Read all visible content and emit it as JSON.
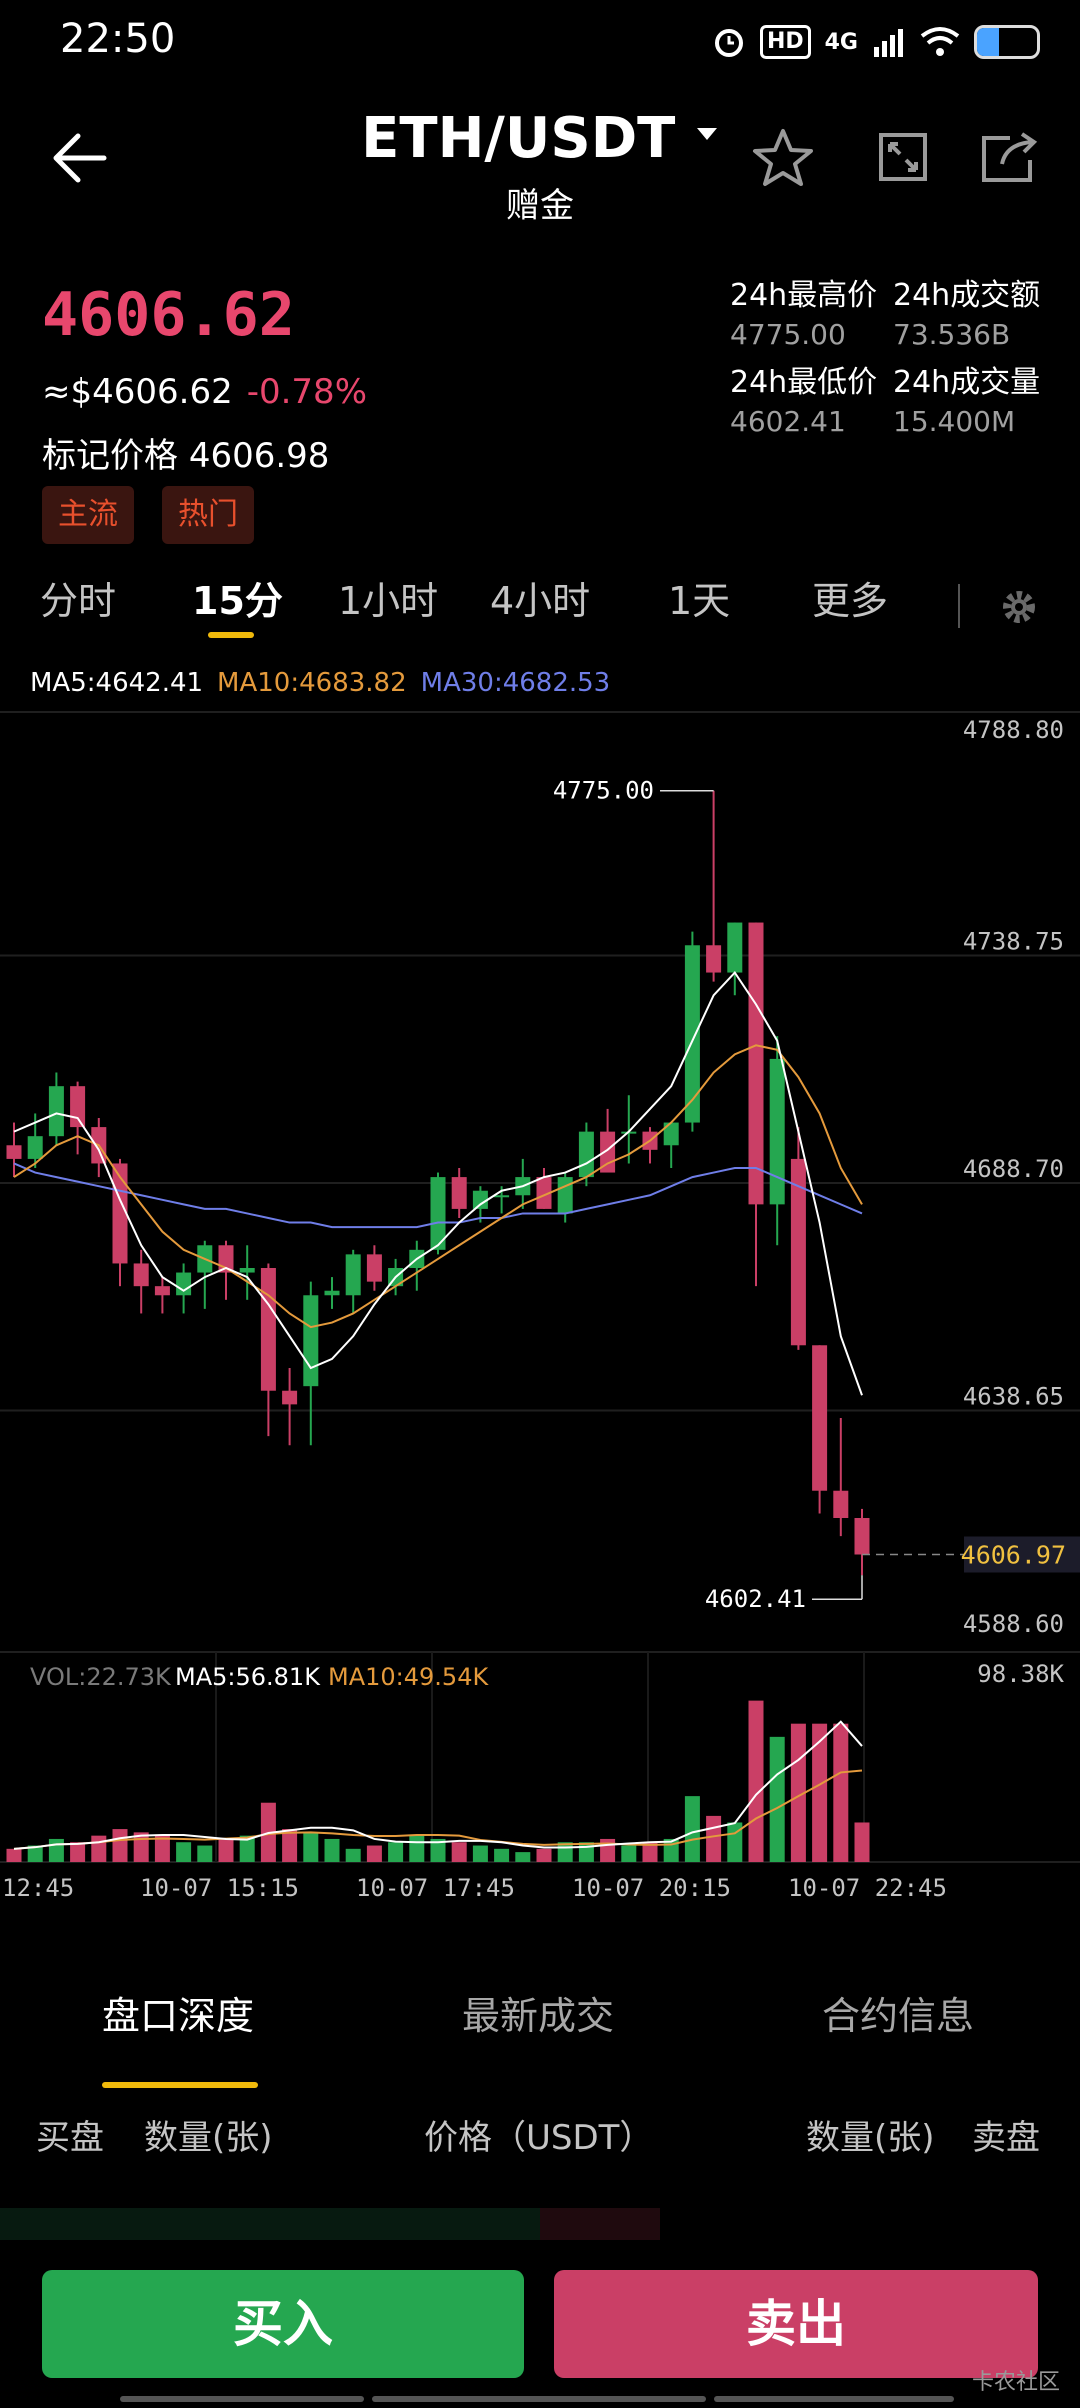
{
  "status_bar": {
    "time": "22:50",
    "hd": "HD",
    "network": "4G"
  },
  "header": {
    "title": "ETH/USDT",
    "subtitle": "赠金"
  },
  "price": {
    "last": "4606.62",
    "usd": "≈$4606.62",
    "change": "-0.78%",
    "mark_label": "标记价格",
    "mark_value": "4606.98"
  },
  "tags": [
    "主流",
    "热门"
  ],
  "stats": {
    "high_label": "24h最高价",
    "high": "4775.00",
    "low_label": "24h最低价",
    "low": "4602.41",
    "turnover_label": "24h成交额",
    "turnover": "73.536B",
    "volume_label": "24h成交量",
    "volume": "15.400M"
  },
  "interval_tabs": [
    "分时",
    "15分",
    "1小时",
    "4小时",
    "1天",
    "更多"
  ],
  "active_interval": "15分",
  "ma_legend": {
    "ma5": "MA5:4642.41",
    "ma10": "MA10:4683.82",
    "ma30": "MA30:4682.53"
  },
  "vol_legend": {
    "vol": "VOL:22.73K",
    "ma5": "MA5:56.81K",
    "ma10": "MA10:49.54K"
  },
  "price_axis": [
    "4788.80",
    "4738.75",
    "4688.70",
    "4638.65",
    "4588.60"
  ],
  "current_price_tag": "4606.97",
  "high_marker": "4775.00",
  "low_marker": "4602.41",
  "volume_axis_max": "98.38K",
  "time_axis": [
    "12:45",
    "10-07 15:15",
    "10-07 17:45",
    "10-07 20:15",
    "10-07 22:45"
  ],
  "colors": {
    "up": "#25a750",
    "down": "#ca3f66",
    "accent": "#f0b90b",
    "ma5": "#ffffff",
    "ma10": "#e49a3c",
    "ma30": "#6f7ee8"
  },
  "chart_data": {
    "type": "candlestick",
    "ylim": [
      4588.6,
      4788.8
    ],
    "candles": [
      {
        "o": 4697,
        "h": 4702,
        "l": 4690,
        "c": 4694
      },
      {
        "o": 4694,
        "h": 4704,
        "l": 4692,
        "c": 4699
      },
      {
        "o": 4699,
        "h": 4713,
        "l": 4697,
        "c": 4710
      },
      {
        "o": 4710,
        "h": 4711,
        "l": 4695,
        "c": 4701
      },
      {
        "o": 4701,
        "h": 4703,
        "l": 4690,
        "c": 4693
      },
      {
        "o": 4693,
        "h": 4694,
        "l": 4666,
        "c": 4671
      },
      {
        "o": 4671,
        "h": 4674,
        "l": 4660,
        "c": 4666
      },
      {
        "o": 4666,
        "h": 4668,
        "l": 4660,
        "c": 4664
      },
      {
        "o": 4664,
        "h": 4671,
        "l": 4660,
        "c": 4669
      },
      {
        "o": 4669,
        "h": 4676,
        "l": 4661,
        "c": 4675
      },
      {
        "o": 4675,
        "h": 4676,
        "l": 4663,
        "c": 4669
      },
      {
        "o": 4669,
        "h": 4675,
        "l": 4663,
        "c": 4670
      },
      {
        "o": 4670,
        "h": 4671,
        "l": 4633,
        "c": 4643
      },
      {
        "o": 4643,
        "h": 4648,
        "l": 4631,
        "c": 4640
      },
      {
        "o": 4644,
        "h": 4667,
        "l": 4631,
        "c": 4664
      },
      {
        "o": 4664,
        "h": 4668,
        "l": 4661,
        "c": 4665
      },
      {
        "o": 4664,
        "h": 4674,
        "l": 4660,
        "c": 4673
      },
      {
        "o": 4673,
        "h": 4675,
        "l": 4665,
        "c": 4667
      },
      {
        "o": 4666,
        "h": 4672,
        "l": 4664,
        "c": 4670
      },
      {
        "o": 4670,
        "h": 4676,
        "l": 4665,
        "c": 4674
      },
      {
        "o": 4674,
        "h": 4691,
        "l": 4673,
        "c": 4690
      },
      {
        "o": 4690,
        "h": 4692,
        "l": 4681,
        "c": 4683
      },
      {
        "o": 4683,
        "h": 4688,
        "l": 4680,
        "c": 4687
      },
      {
        "o": 4686,
        "h": 4688,
        "l": 4682,
        "c": 4686
      },
      {
        "o": 4686,
        "h": 4694,
        "l": 4683,
        "c": 4690
      },
      {
        "o": 4690,
        "h": 4692,
        "l": 4683,
        "c": 4683
      },
      {
        "o": 4682,
        "h": 4691,
        "l": 4680,
        "c": 4690
      },
      {
        "o": 4690,
        "h": 4702,
        "l": 4688,
        "c": 4700
      },
      {
        "o": 4700,
        "h": 4705,
        "l": 4692,
        "c": 4691
      },
      {
        "o": 4700,
        "h": 4708,
        "l": 4693,
        "c": 4700
      },
      {
        "o": 4700,
        "h": 4701,
        "l": 4693,
        "c": 4696
      },
      {
        "o": 4697,
        "h": 4702,
        "l": 4692,
        "c": 4702
      },
      {
        "o": 4702,
        "h": 4744,
        "l": 4700,
        "c": 4741
      },
      {
        "o": 4741,
        "h": 4775,
        "l": 4733,
        "c": 4735
      },
      {
        "o": 4735,
        "h": 4746,
        "l": 4730,
        "c": 4746
      },
      {
        "o": 4746,
        "h": 4746,
        "l": 4666,
        "c": 4684
      },
      {
        "o": 4684,
        "h": 4721,
        "l": 4675,
        "c": 4716
      },
      {
        "o": 4694,
        "h": 4701,
        "l": 4652,
        "c": 4653
      },
      {
        "o": 4653,
        "h": 4653,
        "l": 4616,
        "c": 4621
      },
      {
        "o": 4621,
        "h": 4637,
        "l": 4611,
        "c": 4615
      },
      {
        "o": 4615,
        "h": 4617,
        "l": 4602.41,
        "c": 4606.97
      }
    ],
    "volume_max": 98.38,
    "volumes": [
      8,
      10,
      14,
      12,
      16,
      20,
      18,
      16,
      12,
      10,
      14,
      16,
      36,
      20,
      18,
      14,
      8,
      10,
      12,
      16,
      14,
      12,
      10,
      8,
      6,
      8,
      12,
      12,
      14,
      10,
      12,
      14,
      40,
      28,
      24,
      98,
      76,
      84,
      84,
      84,
      24
    ],
    "ma5": [
      4700,
      4702,
      4704,
      4703,
      4696,
      4685,
      4675,
      4668,
      4665,
      4668,
      4670,
      4668,
      4662,
      4655,
      4648,
      4650,
      4655,
      4662,
      4668,
      4672,
      4675,
      4680,
      4684,
      4687,
      4688,
      4690,
      4691,
      4693,
      4696,
      4700,
      4705,
      4710,
      4720,
      4730,
      4735,
      4728,
      4720,
      4700,
      4680,
      4655,
      4642
    ],
    "ma10": [
      4690,
      4693,
      4697,
      4699,
      4697,
      4690,
      4684,
      4678,
      4674,
      4672,
      4670,
      4667,
      4664,
      4660,
      4657,
      4658,
      4660,
      4663,
      4666,
      4669,
      4672,
      4675,
      4678,
      4681,
      4684,
      4686,
      4688,
      4690,
      4693,
      4695,
      4698,
      4702,
      4707,
      4713,
      4717,
      4719,
      4718,
      4712,
      4704,
      4692,
      4684
    ],
    "ma30": [
      4693,
      4691,
      4690,
      4689,
      4688,
      4687,
      4686,
      4685,
      4684,
      4683,
      4683,
      4682,
      4681,
      4680,
      4680,
      4679,
      4679,
      4679,
      4679,
      4679,
      4680,
      4680,
      4681,
      4681,
      4682,
      4682,
      4682,
      4683,
      4684,
      4685,
      4686,
      4688,
      4690,
      4691,
      4692,
      4692,
      4690,
      4688,
      4686,
      4684,
      4682
    ]
  },
  "order_tabs": [
    "盘口深度",
    "最新成交",
    "合约信息"
  ],
  "columns": {
    "buy": "买盘",
    "qty_left": "数量(张)",
    "price": "价格（USDT）",
    "qty_right": "数量(张)",
    "sell": "卖盘"
  },
  "buttons": {
    "buy": "买入",
    "sell": "卖出"
  },
  "watermark": "卡农社区"
}
